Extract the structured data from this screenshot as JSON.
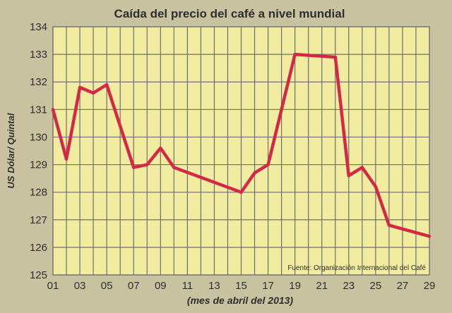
{
  "chart_data": {
    "type": "line",
    "title": "Caída del precio del café a nivel mundial",
    "xlabel": "(mes de abril del 2013)",
    "ylabel": "US Dólar/ Quintal",
    "source": "Fuente: Organización Internacional del Café",
    "x_ticks": [
      "01",
      "03",
      "05",
      "07",
      "09",
      "11",
      "13",
      "15",
      "17",
      "19",
      "21",
      "23",
      "25",
      "27",
      "29"
    ],
    "xlim": [
      1,
      29
    ],
    "ylim": [
      125,
      134
    ],
    "y_ticks": [
      125,
      126,
      127,
      128,
      129,
      130,
      131,
      132,
      133,
      134
    ],
    "grid": true,
    "series": [
      {
        "x": [
          1,
          2,
          3,
          4,
          5,
          7,
          8,
          9,
          10,
          15,
          16,
          17,
          19,
          22,
          23,
          24,
          25,
          26,
          29
        ],
        "values": [
          131.0,
          129.2,
          131.8,
          131.6,
          131.9,
          128.9,
          129.0,
          129.6,
          128.9,
          128.0,
          128.7,
          129.0,
          133.0,
          132.9,
          128.6,
          128.9,
          128.2,
          126.8,
          126.4
        ]
      }
    ],
    "colors": {
      "background": "#c9c2a0",
      "plot_background": "#f1eca0",
      "grid": "#6f6f6f",
      "line": "#d42847",
      "text": "#2e2e2e"
    }
  }
}
